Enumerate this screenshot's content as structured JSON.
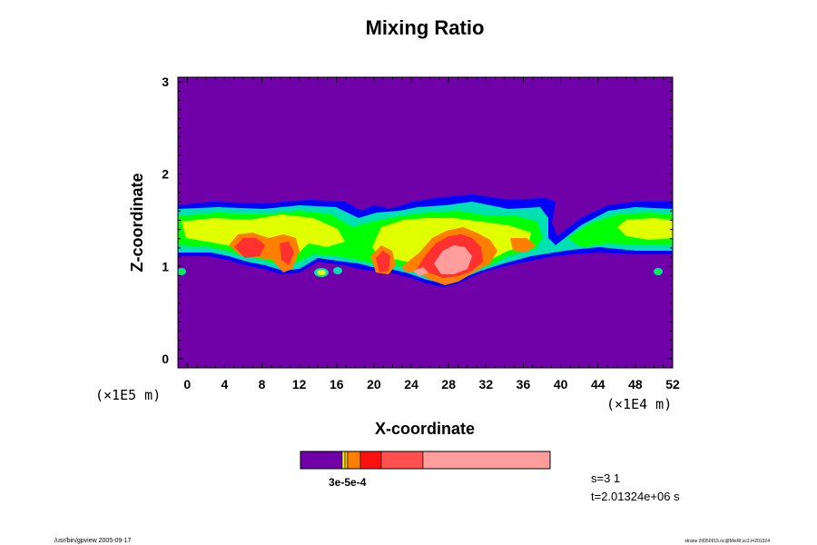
{
  "chart_data": {
    "type": "heatmap",
    "title": "Mixing Ratio",
    "xlabel": "X-coordinate",
    "ylabel": "Z-coordinate",
    "x_scale_note": "(×1E4 m)",
    "y_scale_note": "(×1E5 m)",
    "xlim": [
      -1,
      52
    ],
    "ylim": [
      -0.1,
      3.05
    ],
    "x_ticks": [
      "0",
      "4",
      "8",
      "12",
      "16",
      "20",
      "24",
      "28",
      "32",
      "36",
      "40",
      "44",
      "48",
      "52"
    ],
    "y_ticks": [
      "0",
      "1",
      "2",
      "3"
    ],
    "colorbar_label": "3e-5e-4",
    "colorbar_colors": [
      "#7000a8",
      "#ffc000",
      "#ff8000",
      "#ff1010",
      "#ff5050",
      "#ff9c9c"
    ],
    "colors": {
      "background": "#7000a8",
      "level1": "#0000ff",
      "level2": "#00e0b0",
      "level3": "#00ff00",
      "level4": "#e0ff00",
      "level5": "#ff8000",
      "level6": "#ff3030",
      "level7": "#ff9c9c"
    },
    "step_label": "s=3 1",
    "time_label": "t=2.01324e+06 s"
  },
  "footer": {
    "left": "/usr/bin/gpview 2005-09-17",
    "right": "strane 20050915.nc@MixRt,sc2,t=201324"
  }
}
